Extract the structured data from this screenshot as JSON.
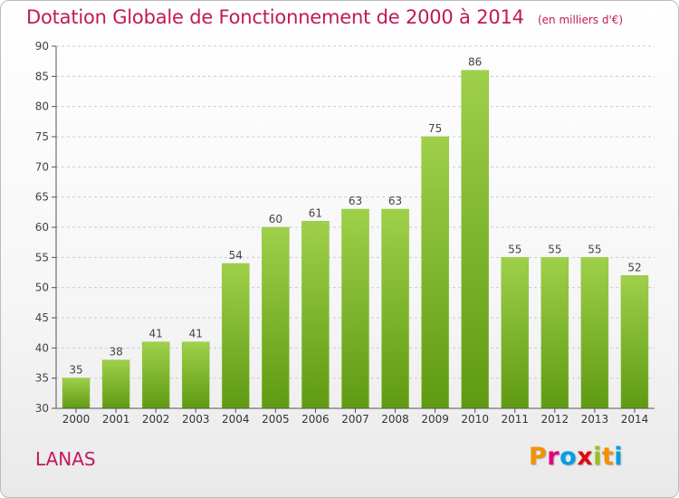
{
  "header": {
    "title": "Dotation Globale de Fonctionnement de 2000 à 2014",
    "unit": "(en milliers d'€)"
  },
  "footer": {
    "commune": "LANAS",
    "logo_text": "Proxiti"
  },
  "colors": {
    "title": "#c2185b",
    "bar_top": "#9fd04a",
    "bar_bottom": "#5f9a12",
    "grid": "#cccccc",
    "axis": "#555555"
  },
  "chart_data": {
    "type": "bar",
    "title": "Dotation Globale de Fonctionnement de 2000 à 2014",
    "subtitle": "(en milliers d'€)",
    "categories": [
      "2000",
      "2001",
      "2002",
      "2003",
      "2004",
      "2005",
      "2006",
      "2007",
      "2008",
      "2009",
      "2010",
      "2011",
      "2012",
      "2013",
      "2014"
    ],
    "values": [
      35,
      38,
      41,
      41,
      54,
      60,
      61,
      63,
      63,
      75,
      86,
      55,
      55,
      55,
      52
    ],
    "xlabel": "",
    "ylabel": "",
    "ylim": [
      30,
      90
    ],
    "yticks": [
      30,
      35,
      40,
      45,
      50,
      55,
      60,
      65,
      70,
      75,
      80,
      85,
      90
    ],
    "grid": true,
    "data_labels": true
  }
}
